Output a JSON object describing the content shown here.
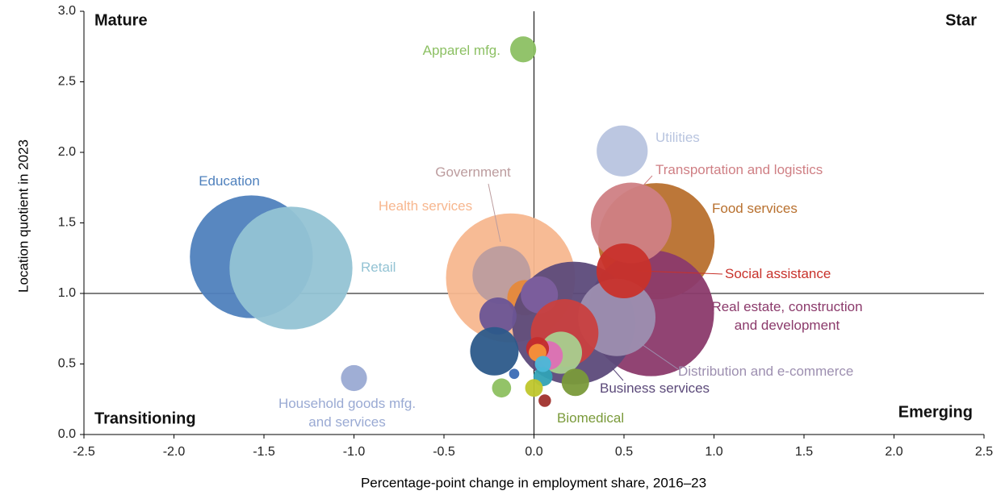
{
  "chart_data": {
    "type": "bubble",
    "x_label": "Percentage-point change in employment share, 2016–23",
    "y_label": "Location quotient in 2023",
    "xlim": [
      -2.5,
      2.5
    ],
    "ylim": [
      0,
      3
    ],
    "xticks": [
      -2.5,
      {
        "value": -2,
        "label": "-2.0"
      },
      -1.5,
      {
        "value": -1,
        "label": "-1.0"
      },
      -0.5,
      {
        "value": 0,
        "label": "0.0"
      },
      0.5,
      {
        "value": 1,
        "label": "1.0"
      },
      1.5,
      {
        "value": 2,
        "label": "2.0"
      },
      2.5
    ],
    "yticks": [
      {
        "value": 0,
        "label": "0.0"
      },
      0.5,
      {
        "value": 1,
        "label": "1.0"
      },
      1.5,
      {
        "value": 2,
        "label": "2.0"
      },
      2.5,
      {
        "value": 3,
        "label": "3.0"
      }
    ],
    "reference_x": 0,
    "reference_y": 1,
    "quadrants": {
      "top_left": "Mature",
      "top_right": "Star",
      "bottom_left": "Transitioning",
      "bottom_right": "Emerging"
    },
    "points": [
      {
        "label": "Education",
        "color": "#4f81bd",
        "x": -1.57,
        "y": 1.26,
        "size": 58
      },
      {
        "label": "Retail",
        "color": "#93c3d4",
        "x": -1.35,
        "y": 1.18,
        "size": 58
      },
      {
        "label": "Health services",
        "color": "#f7b78f",
        "x": -0.13,
        "y": 1.11,
        "size": 64
      },
      {
        "label": "Government",
        "color": "#bc9c9e",
        "x": -0.18,
        "y": 1.13,
        "size": 13
      },
      {
        "label": "Food services",
        "color": "#b8702e",
        "x": 0.68,
        "y": 1.37,
        "size": 52
      },
      {
        "label": null,
        "color": "#e6893a",
        "x": -0.05,
        "y": 0.97,
        "size": 4.8
      },
      {
        "label": "Real estate, construction\nand development",
        "color": "#8b3a6b",
        "x": 0.65,
        "y": 0.86,
        "size": 61
      },
      {
        "label": "Business services",
        "color": "#5c4a7a",
        "x": 0.22,
        "y": 0.79,
        "size": 58
      },
      {
        "label": "Transportation and logistics",
        "color": "#cf7f84",
        "x": 0.54,
        "y": 1.5,
        "size": 25
      },
      {
        "label": "Distribution and e-commerce",
        "color": "#9d8fb0",
        "x": 0.46,
        "y": 0.83,
        "size": 23
      },
      {
        "label": "Social assistance",
        "color": "#c8322b",
        "x": 0.5,
        "y": 1.16,
        "size": 11.6
      },
      {
        "label": "Utilities",
        "color": "#b8c4df",
        "x": 0.49,
        "y": 2.01,
        "size": 10
      },
      {
        "label": "Apparel mfg.",
        "color": "#8cc063",
        "x": -0.06,
        "y": 2.73,
        "size": 2.6
      },
      {
        "label": "Household goods mfg.\nand services",
        "color": "#9aaad3",
        "x": -1.0,
        "y": 0.4,
        "size": 2.6
      },
      {
        "label": null,
        "color": "#7c5e9e",
        "x": 0.03,
        "y": 0.99,
        "size": 5.3
      },
      {
        "label": null,
        "color": "#6a5495",
        "x": -0.2,
        "y": 0.84,
        "size": 5.3
      },
      {
        "label": null,
        "color": "#2c5a8a",
        "x": -0.22,
        "y": 0.59,
        "size": 9
      },
      {
        "label": null,
        "color": "#c9403f",
        "x": 0.17,
        "y": 0.72,
        "size": 17.6
      },
      {
        "label": null,
        "color": "#a9cf8f",
        "x": 0.15,
        "y": 0.58,
        "size": 6.8
      },
      {
        "label": null,
        "color": "#dd6fb5",
        "x": 0.08,
        "y": 0.56,
        "size": 3.2
      },
      {
        "label": null,
        "color": "#c42c2c",
        "x": 0.02,
        "y": 0.61,
        "size": 2
      },
      {
        "label": null,
        "color": "#f7923a",
        "x": 0.02,
        "y": 0.58,
        "size": 1.2
      },
      {
        "label": null,
        "color": "#31a2b5",
        "x": 0.05,
        "y": 0.41,
        "size": 1.4
      },
      {
        "label": null,
        "color": "#4bb8d8",
        "x": 0.05,
        "y": 0.5,
        "size": 1
      },
      {
        "label": null,
        "color": "#3b6cb5",
        "x": -0.11,
        "y": 0.43,
        "size": 0.4
      },
      {
        "label": null,
        "color": "#8dc060",
        "x": -0.18,
        "y": 0.33,
        "size": 1.4
      },
      {
        "label": null,
        "color": "#bfc62c",
        "x": 0.0,
        "y": 0.33,
        "size": 1.2
      },
      {
        "label": null,
        "color": "#a0302c",
        "x": 0.06,
        "y": 0.24,
        "size": 0.6
      },
      {
        "label": "Biomedical",
        "color": "#7a9a3a",
        "x": 0.23,
        "y": 0.37,
        "size": 2.9
      }
    ]
  }
}
